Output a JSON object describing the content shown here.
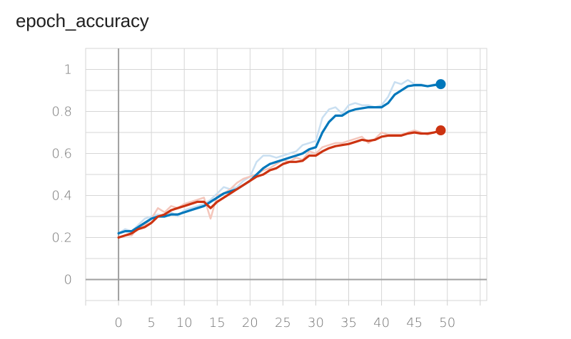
{
  "chart_data": {
    "type": "line",
    "title": "epoch_accuracy",
    "xlabel": "",
    "ylabel": "",
    "xlim": [
      -5,
      56
    ],
    "ylim": [
      -0.1,
      1.1
    ],
    "xticks": [
      "0",
      "5",
      "10",
      "15",
      "20",
      "25",
      "30",
      "35",
      "40",
      "45",
      "50"
    ],
    "yticks": [
      "0",
      "0.2",
      "0.4",
      "0.6",
      "0.8",
      "1"
    ],
    "grid": true,
    "series": [
      {
        "color": "#0077bb",
        "raw_color": "#c9dff1",
        "x": [
          0,
          1,
          2,
          3,
          4,
          5,
          6,
          7,
          8,
          9,
          10,
          11,
          12,
          13,
          14,
          15,
          16,
          17,
          18,
          19,
          20,
          21,
          22,
          23,
          24,
          25,
          26,
          27,
          28,
          29,
          30,
          31,
          32,
          33,
          34,
          35,
          36,
          37,
          38,
          39,
          40,
          41,
          42,
          43,
          44,
          45,
          46,
          47,
          48,
          49
        ],
        "smoothed": [
          0.22,
          0.23,
          0.23,
          0.25,
          0.27,
          0.29,
          0.3,
          0.3,
          0.31,
          0.31,
          0.32,
          0.33,
          0.34,
          0.35,
          0.37,
          0.39,
          0.41,
          0.42,
          0.43,
          0.45,
          0.47,
          0.5,
          0.53,
          0.55,
          0.56,
          0.57,
          0.58,
          0.59,
          0.6,
          0.62,
          0.63,
          0.7,
          0.75,
          0.78,
          0.78,
          0.8,
          0.81,
          0.815,
          0.82,
          0.82,
          0.82,
          0.84,
          0.88,
          0.9,
          0.92,
          0.925,
          0.925,
          0.92,
          0.925,
          0.93
        ],
        "raw": [
          0.22,
          0.24,
          0.23,
          0.26,
          0.29,
          0.3,
          0.31,
          0.3,
          0.32,
          0.3,
          0.33,
          0.34,
          0.35,
          0.36,
          0.38,
          0.41,
          0.44,
          0.43,
          0.44,
          0.47,
          0.49,
          0.56,
          0.59,
          0.59,
          0.58,
          0.59,
          0.6,
          0.61,
          0.64,
          0.65,
          0.66,
          0.77,
          0.81,
          0.82,
          0.79,
          0.83,
          0.84,
          0.83,
          0.83,
          0.82,
          0.83,
          0.87,
          0.94,
          0.93,
          0.95,
          0.93,
          0.93,
          0.92,
          0.93,
          0.93
        ],
        "last_value": 0.93
      },
      {
        "color": "#cc3311",
        "raw_color": "#f4c6bb",
        "x": [
          0,
          1,
          2,
          3,
          4,
          5,
          6,
          7,
          8,
          9,
          10,
          11,
          12,
          13,
          14,
          15,
          16,
          17,
          18,
          19,
          20,
          21,
          22,
          23,
          24,
          25,
          26,
          27,
          28,
          29,
          30,
          31,
          32,
          33,
          34,
          35,
          36,
          37,
          38,
          39,
          40,
          41,
          42,
          43,
          44,
          45,
          46,
          47,
          48,
          49
        ],
        "smoothed": [
          0.2,
          0.21,
          0.22,
          0.24,
          0.25,
          0.27,
          0.3,
          0.31,
          0.33,
          0.34,
          0.35,
          0.36,
          0.37,
          0.37,
          0.34,
          0.37,
          0.39,
          0.41,
          0.43,
          0.45,
          0.47,
          0.49,
          0.5,
          0.52,
          0.53,
          0.55,
          0.56,
          0.56,
          0.565,
          0.59,
          0.59,
          0.61,
          0.625,
          0.635,
          0.64,
          0.645,
          0.655,
          0.665,
          0.66,
          0.665,
          0.68,
          0.685,
          0.685,
          0.685,
          0.695,
          0.7,
          0.695,
          0.695,
          0.7,
          0.71
        ],
        "raw": [
          0.2,
          0.21,
          0.21,
          0.25,
          0.26,
          0.29,
          0.34,
          0.32,
          0.35,
          0.34,
          0.36,
          0.37,
          0.38,
          0.39,
          0.29,
          0.4,
          0.41,
          0.43,
          0.46,
          0.48,
          0.49,
          0.5,
          0.52,
          0.53,
          0.55,
          0.57,
          0.56,
          0.58,
          0.57,
          0.61,
          0.6,
          0.63,
          0.64,
          0.65,
          0.65,
          0.66,
          0.67,
          0.68,
          0.65,
          0.67,
          0.7,
          0.69,
          0.69,
          0.69,
          0.7,
          0.71,
          0.7,
          0.69,
          0.7,
          0.71
        ],
        "last_value": 0.71
      }
    ]
  }
}
